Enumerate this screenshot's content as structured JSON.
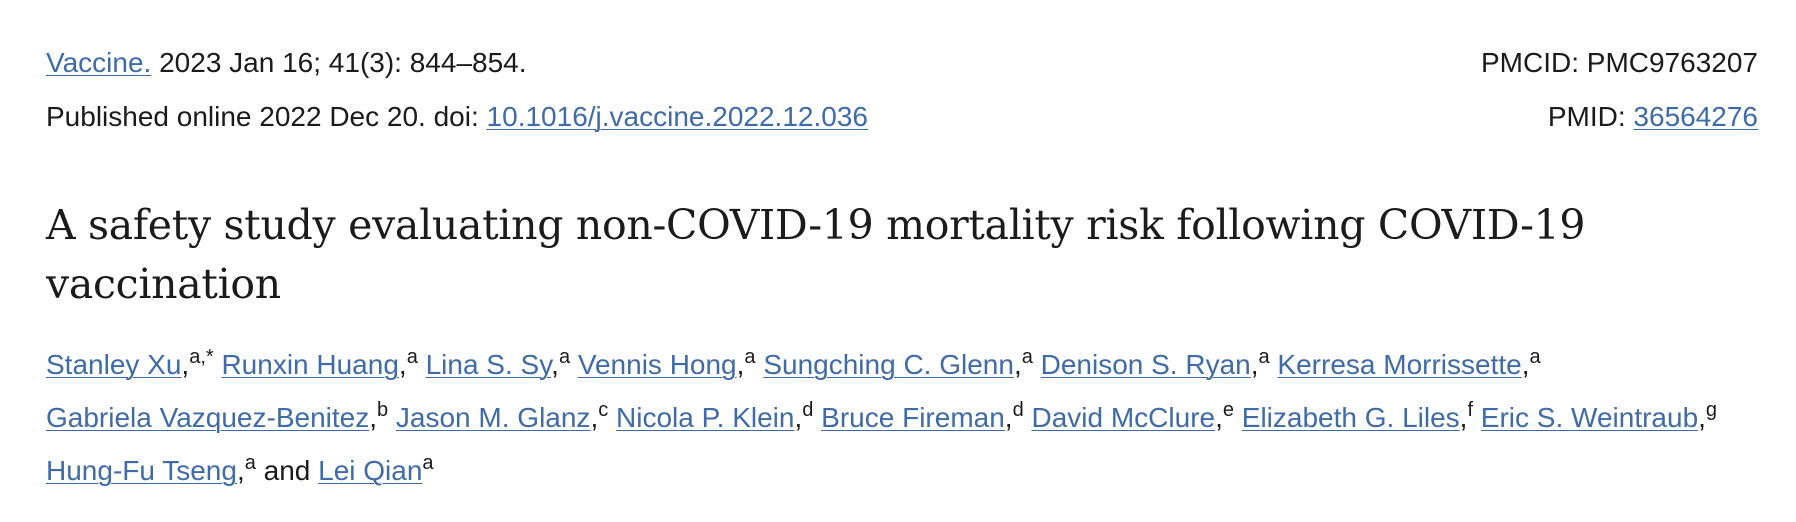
{
  "citation": {
    "journal": "Vaccine.",
    "issue_info": " 2023 Jan 16; 41(3): 844–854.",
    "published_prefix": "Published online 2022 Dec 20. doi: ",
    "doi": "10.1016/j.vaccine.2022.12.036",
    "pmcid_label": "PMCID: ",
    "pmcid": "PMC9763207",
    "pmid_label": "PMID: ",
    "pmid": "36564276"
  },
  "article": {
    "title": "A safety study evaluating non-COVID-19 mortality risk following COVID-19 vaccination"
  },
  "authors": [
    {
      "name": "Stanley Xu",
      "sep": ",",
      "aff": "a,*"
    },
    {
      "name": "Runxin Huang",
      "sep": ",",
      "aff": "a"
    },
    {
      "name": "Lina S. Sy",
      "sep": ",",
      "aff": "a"
    },
    {
      "name": "Vennis Hong",
      "sep": ",",
      "aff": "a"
    },
    {
      "name": "Sungching C. Glenn",
      "sep": ",",
      "aff": "a"
    },
    {
      "name": "Denison S. Ryan",
      "sep": ",",
      "aff": "a"
    },
    {
      "name": "Kerresa Morrissette",
      "sep": ",",
      "aff": "a"
    },
    {
      "name": "Gabriela Vazquez-Benitez",
      "sep": ",",
      "aff": "b"
    },
    {
      "name": "Jason M. Glanz",
      "sep": ",",
      "aff": "c"
    },
    {
      "name": "Nicola P. Klein",
      "sep": ",",
      "aff": "d"
    },
    {
      "name": "Bruce Fireman",
      "sep": ",",
      "aff": "d"
    },
    {
      "name": "David McClure",
      "sep": ",",
      "aff": "e"
    },
    {
      "name": "Elizabeth G. Liles",
      "sep": ",",
      "aff": "f"
    },
    {
      "name": "Eric S. Weintraub",
      "sep": ",",
      "aff": "g"
    },
    {
      "name": "Hung-Fu Tseng",
      "sep": ",",
      "aff": "a"
    },
    {
      "name": "Lei Qian",
      "sep": "",
      "aff": "a"
    }
  ],
  "conjunction": " and ",
  "colors": {
    "link": "#3f6ba8",
    "text": "#1b1b1b"
  }
}
